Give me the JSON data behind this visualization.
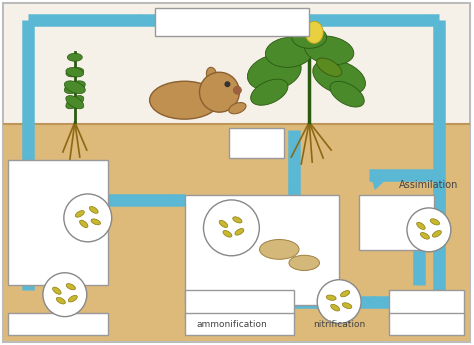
{
  "bg_color": "#e8c99a",
  "outer_bg": "#ffffff",
  "arrow_color": "#5bb8d4",
  "box_color": "#ffffff",
  "box_edge": "#999999",
  "soil_color": "#ddb97a",
  "sky_color": "#f5f0e8",
  "text_color": "#444444",
  "label_ammonification": "ammonification",
  "label_nitrification": "nitrification",
  "label_assimilation": "Assimilation",
  "arrow_lw": 9,
  "bacteria_color": "#c8b830",
  "bacteria_edge": "#8a7a10",
  "mushroom_cap": "#d4b87a",
  "mushroom_stem": "#e8d9b0",
  "plant_green": "#4a8a2a",
  "plant_dark": "#2a5a10",
  "mole_color": "#c09050",
  "mole_edge": "#8a6030",
  "root_color": "#8B6914"
}
